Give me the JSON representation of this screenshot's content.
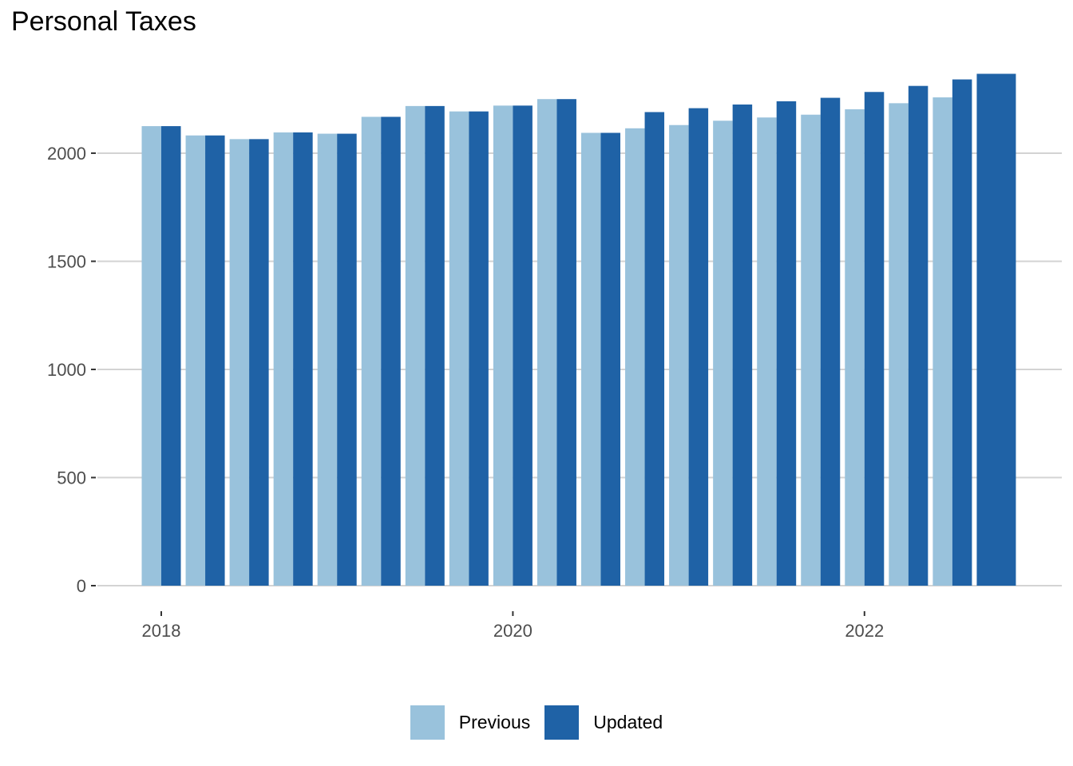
{
  "chart_data": {
    "type": "bar",
    "title": "Personal Taxes",
    "xlabel": "",
    "ylabel": "",
    "x_dates": [
      "2018-01",
      "2018-04",
      "2018-07",
      "2018-10",
      "2019-01",
      "2019-04",
      "2019-07",
      "2019-10",
      "2020-01",
      "2020-04",
      "2020-07",
      "2020-10",
      "2021-01",
      "2021-04",
      "2021-07",
      "2021-10",
      "2022-01",
      "2022-04",
      "2022-07",
      "2022-10"
    ],
    "x_ticks": [
      "2018",
      "2020",
      "2022"
    ],
    "y_ticks": [
      0,
      500,
      1000,
      1500,
      2000
    ],
    "ylim": [
      0,
      2450
    ],
    "grid": "horizontal major",
    "legend_position": "bottom",
    "series": [
      {
        "name": "Previous",
        "color": "#99c2dc",
        "values": [
          2125,
          2082,
          2065,
          2096,
          2090,
          2168,
          2218,
          2193,
          2220,
          2250,
          2094,
          2115,
          2130,
          2150,
          2165,
          2178,
          2203,
          2231,
          2258,
          null
        ]
      },
      {
        "name": "Updated",
        "color": "#1f62a6",
        "values": [
          2125,
          2082,
          2065,
          2096,
          2090,
          2168,
          2218,
          2193,
          2220,
          2250,
          2094,
          2190,
          2208,
          2225,
          2240,
          2256,
          2283,
          2311,
          2341,
          2367
        ]
      }
    ]
  }
}
